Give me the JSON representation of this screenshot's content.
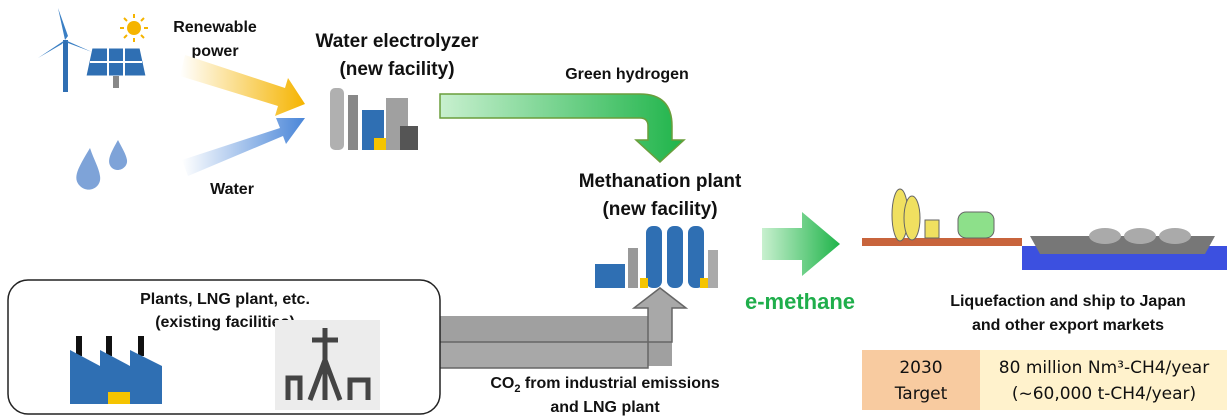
{
  "inputs": {
    "renewable": [
      "Renewable",
      "power"
    ],
    "water": "Water"
  },
  "electrolyzer": {
    "label": [
      "Water electrolyzer",
      "(new facility)"
    ]
  },
  "hydrogen": "Green hydrogen",
  "methanation": {
    "label": [
      "Methanation plant",
      "(new facility)"
    ]
  },
  "existing": {
    "label": [
      "Plants, LNG plant, etc.",
      "(existing facilities)"
    ]
  },
  "co2": {
    "prefix": "CO",
    "sub": "2",
    "rest": " from industrial emissions",
    "line2": "and LNG plant"
  },
  "product": "e-methane",
  "export": [
    "Liquefaction and ship to Japan",
    "and other export markets"
  ],
  "table": {
    "year": "2030",
    "target": "Target",
    "volume": "80 million Nm³-CH4/year",
    "mass": "(~60,000 t-CH4/year)"
  }
}
